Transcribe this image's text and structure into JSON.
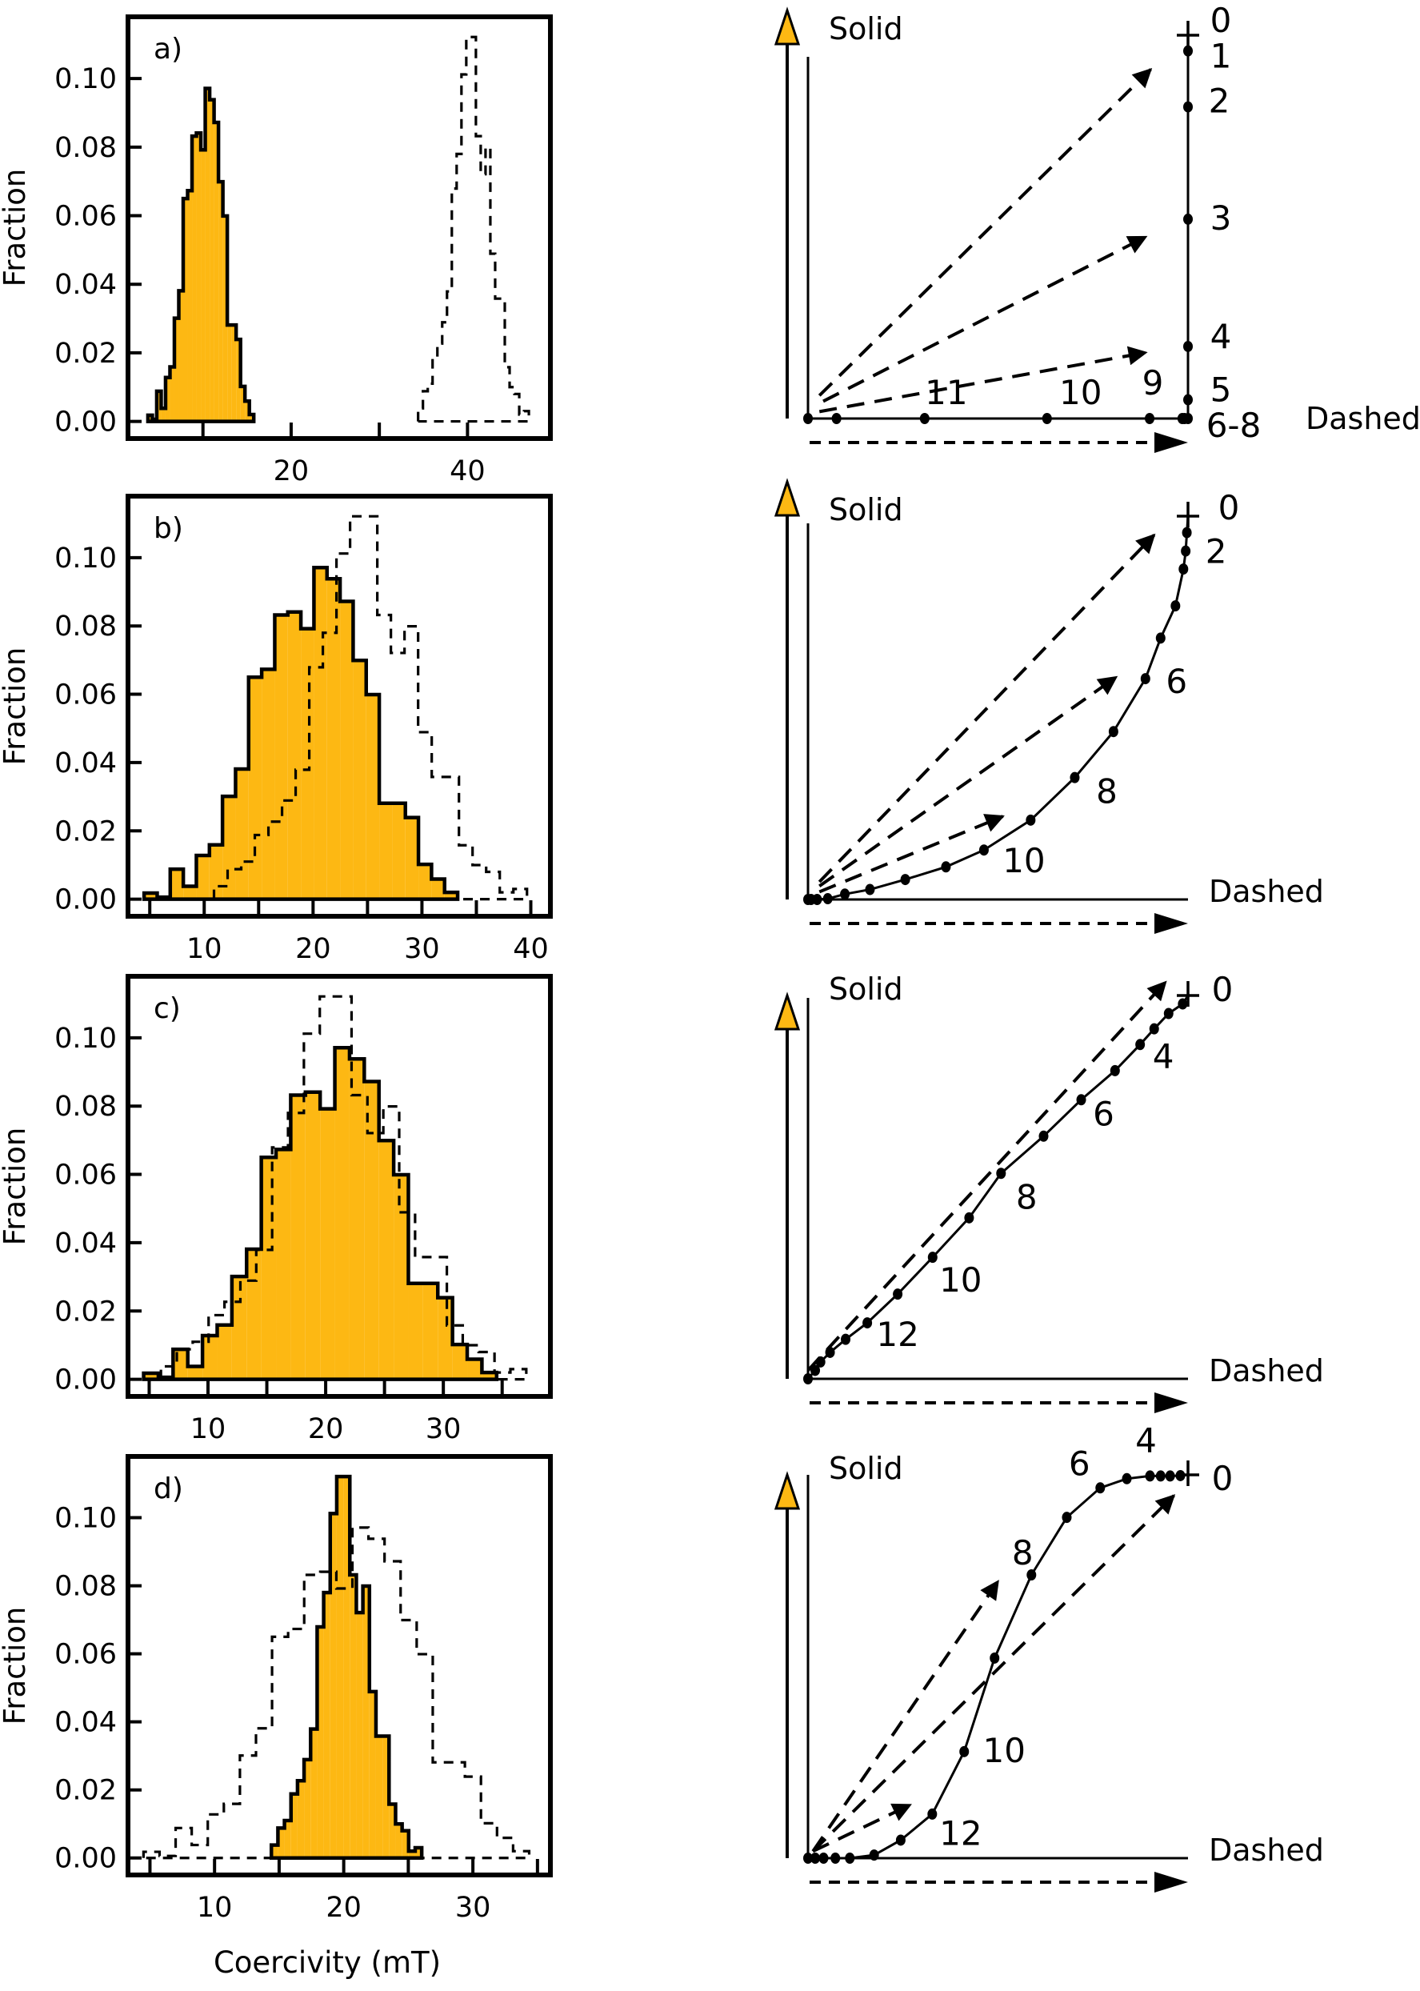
{
  "figure": {
    "ylabel": "Fraction",
    "xlabel": "Coercivity (mT)",
    "fill_color": "#FDB813",
    "line_color": "#000000"
  },
  "chart_data": [
    {
      "type": "bar",
      "panel": "a)",
      "ylabel": "Fraction",
      "xlabel": "",
      "xlim": [
        1.5,
        49.4
      ],
      "ylim": [
        -0.005,
        0.118
      ],
      "xticks": [
        10,
        20,
        30,
        40
      ],
      "xtick_labels": [
        "",
        "20",
        "",
        "40"
      ],
      "yticks": [
        0,
        0.02,
        0.04,
        0.06,
        0.08,
        0.1
      ],
      "ytick_labels": [
        "0.00",
        "0.02",
        "0.04",
        "0.06",
        "0.08",
        "0.10"
      ],
      "series": [
        {
          "style": "solid-filled",
          "bin_start": 3.76,
          "bin_width": 0.5,
          "values": [
            0.0018,
            0.0006,
            0.0088,
            0.0038,
            0.0128,
            0.0159,
            0.0301,
            0.0381,
            0.065,
            0.0673,
            0.0832,
            0.0841,
            0.0792,
            0.0971,
            0.0938,
            0.0872,
            0.0699,
            0.0599,
            0.0281,
            0.0281,
            0.0239,
            0.0102,
            0.0059,
            0.002
          ]
        },
        {
          "style": "dashed",
          "bin_start": 34.4,
          "bin_width": 0.546,
          "values": [
            0.0038,
            0.0088,
            0.011,
            0.0188,
            0.0227,
            0.0289,
            0.0379,
            0.0679,
            0.078,
            0.1012,
            0.1121,
            0.1121,
            0.0832,
            0.0721,
            0.0799,
            0.0489,
            0.0358,
            0.0358,
            0.0158,
            0.01,
            0.008,
            0.002,
            0.003
          ]
        }
      ]
    },
    {
      "type": "bar",
      "panel": "b)",
      "ylabel": "Fraction",
      "xlabel": "",
      "xlim": [
        3.0,
        41.8
      ],
      "ylim": [
        -0.005,
        0.118
      ],
      "xticks": [
        5,
        10,
        15,
        20,
        25,
        30,
        35,
        40
      ],
      "xtick_labels": [
        "",
        "10",
        "",
        "20",
        "",
        "30",
        "",
        "40"
      ],
      "yticks": [
        0,
        0.02,
        0.04,
        0.06,
        0.08,
        0.1
      ],
      "ytick_labels": [
        "0.00",
        "0.02",
        "0.04",
        "0.06",
        "0.08",
        "0.10"
      ],
      "series": [
        {
          "style": "solid-filled",
          "bin_start": 4.48,
          "bin_width": 1.2,
          "values": [
            0.0018,
            0.0006,
            0.0088,
            0.0038,
            0.0128,
            0.0159,
            0.0301,
            0.0381,
            0.065,
            0.0673,
            0.0832,
            0.0841,
            0.0792,
            0.0971,
            0.0938,
            0.0872,
            0.0699,
            0.0599,
            0.0281,
            0.0281,
            0.0239,
            0.0102,
            0.0059,
            0.002
          ]
        },
        {
          "style": "dashed",
          "bin_start": 10.9,
          "bin_width": 1.25,
          "values": [
            0.0038,
            0.0088,
            0.011,
            0.0188,
            0.0227,
            0.0289,
            0.0379,
            0.0679,
            0.078,
            0.1012,
            0.1121,
            0.1121,
            0.0832,
            0.0721,
            0.0799,
            0.0489,
            0.0358,
            0.0358,
            0.0158,
            0.01,
            0.008,
            0.002,
            0.003
          ]
        }
      ]
    },
    {
      "type": "bar",
      "panel": "c)",
      "ylabel": "Fraction",
      "xlabel": "",
      "xlim": [
        3.2,
        39.1
      ],
      "ylim": [
        -0.005,
        0.118
      ],
      "xticks": [
        5,
        10,
        15,
        20,
        25,
        30,
        35
      ],
      "xtick_labels": [
        "",
        "10",
        "",
        "20",
        "",
        "30",
        ""
      ],
      "yticks": [
        0,
        0.02,
        0.04,
        0.06,
        0.08,
        0.1
      ],
      "ytick_labels": [
        "0.00",
        "0.02",
        "0.04",
        "0.06",
        "0.08",
        "0.10"
      ],
      "series": [
        {
          "style": "solid-filled",
          "bin_start": 4.53,
          "bin_width": 1.25,
          "values": [
            0.0018,
            0.0006,
            0.0088,
            0.0038,
            0.0128,
            0.0159,
            0.0301,
            0.0381,
            0.065,
            0.0673,
            0.0832,
            0.0841,
            0.0792,
            0.0971,
            0.0938,
            0.0872,
            0.0699,
            0.0599,
            0.0281,
            0.0281,
            0.0239,
            0.0102,
            0.0059,
            0.002
          ]
        },
        {
          "style": "dashed",
          "bin_start": 6.0,
          "bin_width": 1.35,
          "values": [
            0.0038,
            0.0088,
            0.011,
            0.0188,
            0.0227,
            0.0289,
            0.0379,
            0.0679,
            0.078,
            0.1012,
            0.1121,
            0.1121,
            0.0832,
            0.0721,
            0.0799,
            0.0489,
            0.0358,
            0.0358,
            0.0158,
            0.01,
            0.008,
            0.002,
            0.003
          ]
        }
      ]
    },
    {
      "type": "bar",
      "panel": "d)",
      "ylabel": "Fraction",
      "xlabel": "Coercivity (mT)",
      "xlim": [
        3.3,
        36.0
      ],
      "ylim": [
        -0.005,
        0.118
      ],
      "xticks": [
        5,
        10,
        15,
        20,
        25,
        30,
        35
      ],
      "xtick_labels": [
        "",
        "10",
        "",
        "20",
        "",
        "30",
        ""
      ],
      "yticks": [
        0,
        0.02,
        0.04,
        0.06,
        0.08,
        0.1
      ],
      "ytick_labels": [
        "0.00",
        "0.02",
        "0.04",
        "0.06",
        "0.08",
        "0.10"
      ],
      "series": [
        {
          "style": "solid-filled",
          "bin_start": 14.4,
          "bin_width": 0.506,
          "values": [
            0.0038,
            0.0088,
            0.011,
            0.0188,
            0.0227,
            0.0289,
            0.0379,
            0.0679,
            0.078,
            0.1012,
            0.1121,
            0.1121,
            0.0832,
            0.0721,
            0.0799,
            0.0489,
            0.0358,
            0.0358,
            0.0158,
            0.01,
            0.008,
            0.002,
            0.003
          ]
        },
        {
          "style": "dashed",
          "bin_start": 4.5,
          "bin_width": 1.244,
          "values": [
            0.0018,
            0.0006,
            0.0088,
            0.0038,
            0.0128,
            0.0159,
            0.0301,
            0.0381,
            0.065,
            0.0673,
            0.0832,
            0.0841,
            0.0792,
            0.0971,
            0.0938,
            0.0872,
            0.0699,
            0.0599,
            0.0281,
            0.0281,
            0.0239,
            0.0102,
            0.0059,
            0.002
          ]
        }
      ]
    },
    {
      "type": "line",
      "panel": "a",
      "x_label": "Dashed",
      "y_label": "Solid",
      "points": [
        [
          1,
          1
        ],
        [
          1,
          0.959
        ],
        [
          1,
          0.813
        ],
        [
          1,
          0.52
        ],
        [
          1,
          0.188
        ],
        [
          1,
          0.049
        ],
        [
          1,
          0
        ],
        [
          0.991,
          0
        ],
        [
          0.985,
          0
        ],
        [
          0.899,
          0
        ],
        [
          0.629,
          0
        ],
        [
          0.307,
          0
        ],
        [
          0.075,
          0
        ],
        [
          0,
          0
        ]
      ],
      "step_labels": [
        {
          "text": "0",
          "step": 0
        },
        {
          "text": "1",
          "step": 1
        },
        {
          "text": "2",
          "step": 2
        },
        {
          "text": "3",
          "step": 3
        },
        {
          "text": "4",
          "step": 4
        },
        {
          "text": "5",
          "step": 5
        },
        {
          "text": "6-8",
          "step": 6
        },
        {
          "text": "9",
          "step": 9
        },
        {
          "text": "10",
          "step": 10
        },
        {
          "text": "11",
          "step": 11
        }
      ],
      "dashed_vectors": [
        [
          0.03,
          0.06,
          0.902,
          0.911
        ],
        [
          0.04,
          0.045,
          0.889,
          0.474
        ],
        [
          0.03,
          0.018,
          0.889,
          0.172
        ]
      ]
    },
    {
      "type": "line",
      "panel": "b",
      "x_label": "Dashed",
      "y_label": "Solid",
      "points": [
        [
          1,
          1
        ],
        [
          0.997,
          0.957
        ],
        [
          0.994,
          0.909
        ],
        [
          0.988,
          0.862
        ],
        [
          0.967,
          0.766
        ],
        [
          0.928,
          0.682
        ],
        [
          0.888,
          0.576
        ],
        [
          0.804,
          0.438
        ],
        [
          0.702,
          0.318
        ],
        [
          0.586,
          0.207
        ],
        [
          0.463,
          0.129
        ],
        [
          0.363,
          0.085
        ],
        [
          0.256,
          0.052
        ],
        [
          0.163,
          0.026
        ],
        [
          0.097,
          0.014
        ],
        [
          0.052,
          0.002
        ],
        [
          0.024,
          0
        ],
        [
          0.008,
          0
        ],
        [
          0,
          0
        ]
      ],
      "step_labels": [
        {
          "text": "0",
          "step": 0
        },
        {
          "text": "2",
          "step": 2
        },
        {
          "text": "6",
          "step": 6
        },
        {
          "text": "8",
          "step": 8
        },
        {
          "text": "10",
          "step": 10
        }
      ],
      "dashed_vectors": [
        [
          0.03,
          0.046,
          0.911,
          0.951
        ],
        [
          0.03,
          0.035,
          0.811,
          0.58
        ],
        [
          0.03,
          0.02,
          0.513,
          0.217
        ]
      ]
    },
    {
      "type": "line",
      "panel": "c",
      "x_label": "Dashed",
      "y_label": "Solid",
      "points": [
        [
          1,
          1
        ],
        [
          0.986,
          0.978
        ],
        [
          0.949,
          0.953
        ],
        [
          0.911,
          0.913
        ],
        [
          0.874,
          0.872
        ],
        [
          0.808,
          0.804
        ],
        [
          0.719,
          0.728
        ],
        [
          0.62,
          0.633
        ],
        [
          0.508,
          0.536
        ],
        [
          0.424,
          0.42
        ],
        [
          0.328,
          0.317
        ],
        [
          0.236,
          0.221
        ],
        [
          0.156,
          0.146
        ],
        [
          0.099,
          0.103
        ],
        [
          0.058,
          0.069
        ],
        [
          0.033,
          0.044
        ],
        [
          0.019,
          0.022
        ],
        [
          0,
          0
        ]
      ],
      "step_labels": [
        {
          "text": "0",
          "step": 0
        },
        {
          "text": "4",
          "step": 4
        },
        {
          "text": "6",
          "step": 6
        },
        {
          "text": "8",
          "step": 8
        },
        {
          "text": "10",
          "step": 10
        },
        {
          "text": "12",
          "step": 12
        }
      ],
      "dashed_vectors": [
        [
          0,
          0.022,
          0.941,
          1.035
        ]
      ]
    },
    {
      "type": "line",
      "panel": "d",
      "x_label": "Dashed",
      "y_label": "Solid",
      "points": [
        [
          1,
          1
        ],
        [
          0.98,
          0.998
        ],
        [
          0.953,
          0.997
        ],
        [
          0.928,
          0.997
        ],
        [
          0.9,
          0.997
        ],
        [
          0.839,
          0.99
        ],
        [
          0.769,
          0.966
        ],
        [
          0.681,
          0.889
        ],
        [
          0.588,
          0.739
        ],
        [
          0.491,
          0.522
        ],
        [
          0.411,
          0.278
        ],
        [
          0.327,
          0.115
        ],
        [
          0.244,
          0.047
        ],
        [
          0.174,
          0.008
        ],
        [
          0.11,
          0
        ],
        [
          0.072,
          0
        ],
        [
          0.041,
          0
        ],
        [
          0.019,
          0
        ],
        [
          0,
          0
        ]
      ],
      "step_labels": [
        {
          "text": "0",
          "step": 0
        },
        {
          "text": "4",
          "step": 4
        },
        {
          "text": "6",
          "step": 6
        },
        {
          "text": "8",
          "step": 8
        },
        {
          "text": "10",
          "step": 10
        },
        {
          "text": "12",
          "step": 12
        }
      ],
      "dashed_vectors": [
        [
          0.013,
          0.018,
          0.5,
          0.722
        ],
        [
          0.013,
          0.018,
          0.963,
          0.946
        ],
        [
          0.013,
          0.018,
          0.269,
          0.139
        ]
      ]
    }
  ]
}
